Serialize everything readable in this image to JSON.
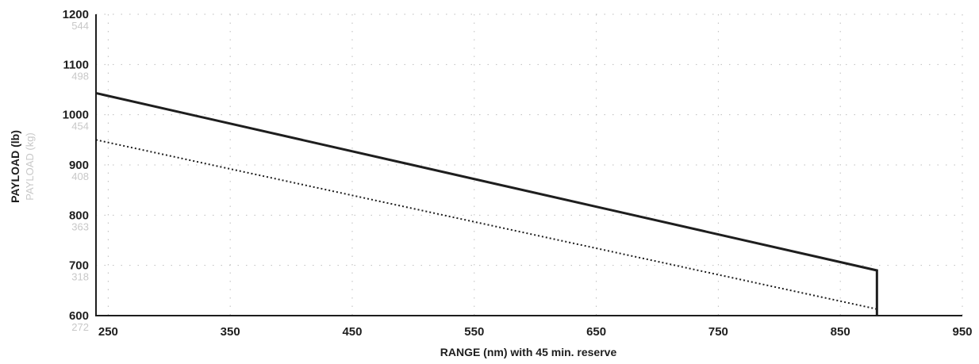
{
  "chart_data": {
    "type": "line",
    "xlabel": "RANGE (nm) with 45 min. reserve",
    "ylabel": "PAYLOAD (lb)",
    "ylabel_secondary": "PAYLOAD (kg)",
    "xlim": [
      240,
      950
    ],
    "ylim": [
      600,
      1200
    ],
    "x_ticks": [
      "250",
      "350",
      "450",
      "550",
      "650",
      "750",
      "850",
      "950"
    ],
    "y_ticks": [
      "600",
      "700",
      "800",
      "900",
      "1000",
      "1100",
      "1200"
    ],
    "y_ticks_secondary": [
      "272",
      "318",
      "363",
      "408",
      "454",
      "498",
      "544"
    ],
    "grid": true,
    "series": [
      {
        "style": "solid",
        "color": "#1e1e1e",
        "x": [
          240,
          880,
          880
        ],
        "y": [
          1043,
          690,
          600
        ]
      },
      {
        "style": "dotted",
        "color": "#1e1e1e",
        "x": [
          240,
          880
        ],
        "y": [
          950,
          613
        ]
      }
    ]
  }
}
